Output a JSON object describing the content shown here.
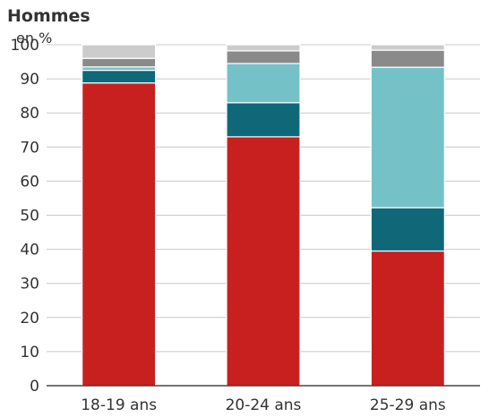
{
  "chart_data": {
    "type": "bar",
    "stacked": true,
    "title": "Hommes",
    "ylabel": "en %",
    "xlabel": "",
    "ylim": [
      0,
      100
    ],
    "yticks": [
      0,
      10,
      20,
      30,
      40,
      50,
      60,
      70,
      80,
      90,
      100
    ],
    "grid": true,
    "legend": "none",
    "categories": [
      "18-19 ans",
      "20-24 ans",
      "25-29 ans"
    ],
    "series": [
      {
        "color": "#c8201f",
        "values": [
          88.8,
          73.0,
          39.5
        ]
      },
      {
        "color": "#0e6878",
        "values": [
          3.7,
          10.0,
          12.7
        ]
      },
      {
        "color": "#74c2c8",
        "values": [
          1.0,
          11.5,
          41.2
        ]
      },
      {
        "color": "#8a8a8a",
        "values": [
          2.5,
          3.7,
          5.0
        ]
      },
      {
        "color": "#cccccc",
        "values": [
          4.0,
          1.8,
          1.6
        ]
      }
    ]
  }
}
